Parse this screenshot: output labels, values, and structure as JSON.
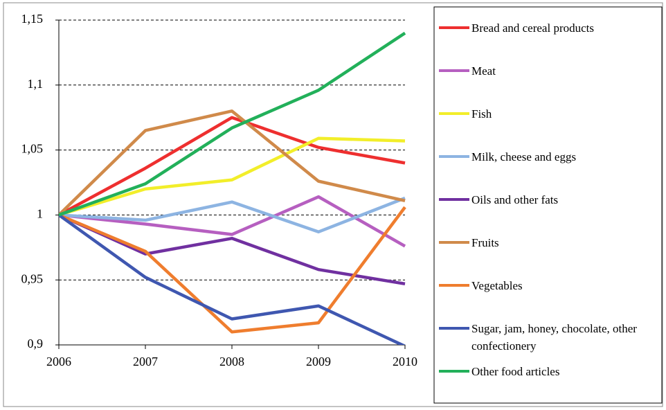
{
  "chart_data": {
    "type": "line",
    "x": [
      2006,
      2007,
      2008,
      2009,
      2010
    ],
    "xlim": [
      2006,
      2010
    ],
    "xticks": [
      2006,
      2007,
      2008,
      2009,
      2010
    ],
    "ylim": [
      0.9,
      1.15
    ],
    "yticks": [
      {
        "value": 0.9,
        "label": "0,9"
      },
      {
        "value": 0.95,
        "label": "0,95"
      },
      1,
      {
        "value": 1.05,
        "label": "1,05"
      },
      {
        "value": 1.1,
        "label": "1,1"
      },
      {
        "value": 1.15,
        "label": "1,15"
      }
    ],
    "grid": true,
    "legend": "right",
    "series": [
      {
        "name": "Bread and cereal products",
        "color": "#ee2f2f",
        "values": [
          1,
          1.036,
          1.075,
          1.052,
          1.04
        ]
      },
      {
        "name": "Meat",
        "color": "#b65fc0",
        "values": [
          1,
          0.993,
          0.985,
          1.014,
          0.976
        ]
      },
      {
        "name": "Fish",
        "color": "#f2ee2a",
        "values": [
          1,
          1.02,
          1.027,
          1.059,
          1.057
        ]
      },
      {
        "name": "Milk, cheese and eggs",
        "color": "#8db4e2",
        "values": [
          1,
          0.996,
          1.01,
          0.987,
          1.013
        ]
      },
      {
        "name": "Oils and other fats",
        "color": "#7030a0",
        "values": [
          1,
          0.97,
          0.982,
          0.958,
          0.947
        ]
      },
      {
        "name": "Fruits",
        "color": "#d08a4a",
        "values": [
          1,
          1.065,
          1.08,
          1.026,
          1.011
        ]
      },
      {
        "name": "Vegetables",
        "color": "#ef7d2e",
        "values": [
          1,
          0.972,
          0.91,
          0.917,
          1.006
        ]
      },
      {
        "name": "Sugar, jam, honey, chocolate, other confectionery",
        "color": "#3f57b0",
        "values": [
          1,
          0.952,
          0.92,
          0.93,
          0.899
        ]
      },
      {
        "name": "Other food articles",
        "color": "#22b05a",
        "values": [
          1,
          1.024,
          1.067,
          1.096,
          1.14
        ]
      }
    ]
  }
}
